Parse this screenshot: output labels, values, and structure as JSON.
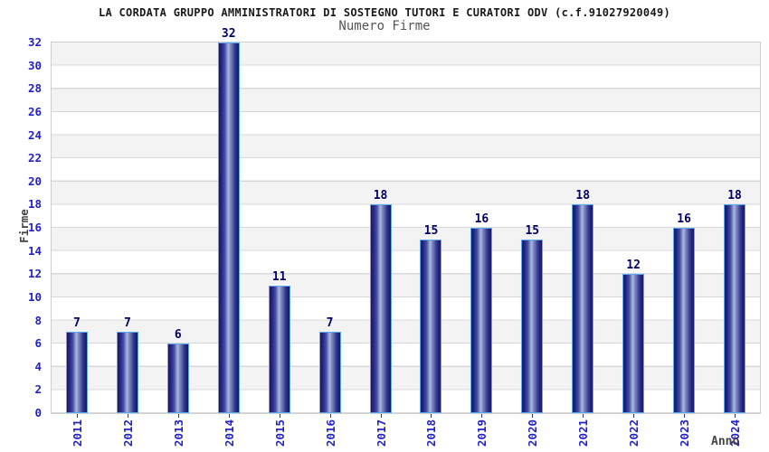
{
  "chart_data": {
    "type": "bar",
    "title": "LA CORDATA GRUPPO AMMINISTRATORI DI SOSTEGNO TUTORI E CURATORI ODV (c.f.91027920049)",
    "subtitle": "Numero Firme",
    "xlabel": "Anno",
    "ylabel": "Firme",
    "categories": [
      "2011",
      "2012",
      "2013",
      "2014",
      "2015",
      "2016",
      "2017",
      "2018",
      "2019",
      "2020",
      "2021",
      "2022",
      "2023",
      "2024"
    ],
    "values": [
      7,
      7,
      6,
      32,
      11,
      7,
      18,
      15,
      16,
      15,
      18,
      12,
      16,
      18
    ],
    "ylim": [
      0,
      32
    ],
    "ytick_step": 2,
    "grid": true,
    "legend": "none",
    "bands": "alternating-horizontal",
    "colors": {
      "title": "#1a1a1a",
      "subtitle": "#555555",
      "axis_title": "#444444",
      "tick_label": "#2222cc",
      "value_label": "#000066",
      "bar_border": "#59a7f0",
      "bar_dark": "#161668",
      "bar_light": "#aeb7dd",
      "grid_line": "#d8d8d8",
      "band_fill": "#f3f3f3",
      "frame_border": "#cfcfcf",
      "plot_background": "#ffffff"
    }
  }
}
